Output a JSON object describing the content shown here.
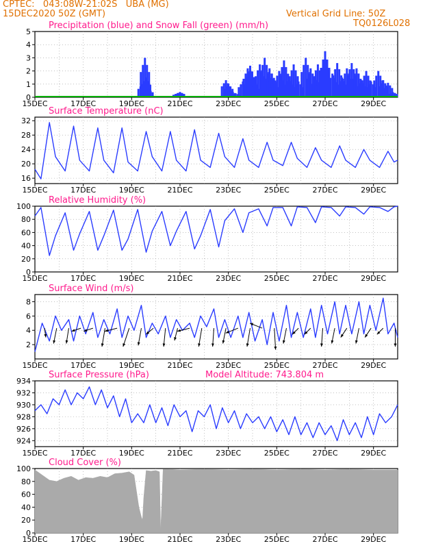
{
  "header": {
    "line1": "CPTEC:   043:08W-21:02S   UBA (MG)",
    "line2": "15DEC2020 50Z (GMT)",
    "right1": "Vertical Grid Line: 50Z",
    "right2": "TQ0126L028"
  },
  "x_axis": {
    "ticks": [
      "15DEC",
      "17DEC",
      "19DEC",
      "21DEC",
      "23DEC",
      "25DEC",
      "27DEC",
      "29DEC"
    ],
    "start_day": 15,
    "end_day": 30
  },
  "colors": {
    "line": "#2a3cff",
    "bar": "#2a3cff",
    "snow": "#00b000",
    "cloud": "#aaaaaa",
    "title": "#ff1a8c",
    "header": "#e07000",
    "arrow": "#000000"
  },
  "chart_data": [
    {
      "id": "precip",
      "type": "bar",
      "title": "Precipitation (blue) and Snow Fall (green) (mm/h)",
      "ylim": [
        0,
        5
      ],
      "yticks": [
        0,
        1,
        2,
        3,
        4,
        5
      ],
      "x_unit": "day of Dec 2020",
      "series": [
        {
          "name": "Precipitation",
          "x": [
            19.45,
            19.55,
            19.6,
            19.7,
            20.9,
            21.0,
            22.9,
            23.0,
            23.1,
            23.3,
            23.6,
            23.8,
            23.9,
            24.0,
            24.1,
            24.3,
            24.5,
            24.7,
            24.8,
            24.9,
            25.1,
            25.3,
            25.5,
            25.7,
            25.9,
            26.2,
            26.4,
            26.6,
            26.7,
            26.8,
            27.0,
            27.3,
            27.5,
            27.7,
            27.9,
            28.1,
            28.3,
            28.5,
            28.7,
            28.9,
            29.2,
            29.4,
            29.6,
            29.8
          ],
          "values": [
            1.0,
            3.0,
            1.5,
            0.6,
            0.3,
            0.4,
            1.3,
            1.0,
            0.5,
            0.3,
            1.2,
            2.2,
            2.4,
            1.5,
            1.0,
            2.5,
            3.0,
            2.2,
            1.8,
            1.2,
            2.0,
            2.8,
            1.5,
            2.5,
            1.2,
            3.0,
            2.2,
            1.6,
            2.5,
            1.4,
            3.5,
            1.8,
            2.6,
            1.5,
            2.2,
            2.6,
            2.2,
            1.3,
            2.0,
            1.2,
            2.0,
            1.3,
            1.1,
            0.4
          ]
        },
        {
          "name": "Snow Fall",
          "x": [
            15,
            30
          ],
          "values": [
            0.05,
            0.05
          ]
        }
      ]
    },
    {
      "id": "temp",
      "type": "line",
      "title": "Surface Temperature (nC)",
      "ylim": [
        14.5,
        33
      ],
      "yticks": [
        16,
        20,
        24,
        28,
        32
      ],
      "series": [
        {
          "name": "Temperature",
          "x": [
            15,
            15.25,
            15.6,
            15.85,
            16.25,
            16.6,
            16.85,
            17.25,
            17.6,
            17.85,
            18.25,
            18.6,
            18.85,
            19.25,
            19.6,
            19.85,
            20.25,
            20.6,
            20.85,
            21.25,
            21.6,
            21.85,
            22.25,
            22.6,
            22.85,
            23.25,
            23.6,
            23.85,
            24.25,
            24.6,
            24.85,
            25.25,
            25.6,
            25.85,
            26.25,
            26.6,
            26.85,
            27.25,
            27.6,
            27.85,
            28.25,
            28.6,
            28.85,
            29.25,
            29.6,
            29.85,
            30
          ],
          "values": [
            18.5,
            15.8,
            31.5,
            22,
            18,
            30.5,
            21,
            18,
            30,
            21,
            17.5,
            30,
            20.5,
            18,
            29,
            22,
            18,
            29,
            21,
            18,
            29.5,
            21,
            19,
            28.5,
            22,
            19,
            27,
            21,
            19,
            26,
            21,
            19.5,
            26,
            21.5,
            19,
            24.5,
            21,
            19,
            25,
            21,
            19,
            24,
            21,
            19,
            23.5,
            20.5,
            21
          ]
        }
      ]
    },
    {
      "id": "rh",
      "type": "line",
      "title": "Relative Humidity (%)",
      "ylim": [
        0,
        100
      ],
      "yticks": [
        0,
        20,
        40,
        60,
        80,
        100
      ],
      "series": [
        {
          "name": "Relative Humidity",
          "x": [
            15,
            15.25,
            15.6,
            15.85,
            16.25,
            16.6,
            16.85,
            17.25,
            17.6,
            17.85,
            18.25,
            18.6,
            18.85,
            19.25,
            19.6,
            19.85,
            20.25,
            20.6,
            20.85,
            21.25,
            21.6,
            21.85,
            22.25,
            22.6,
            22.85,
            23.25,
            23.6,
            23.85,
            24.25,
            24.6,
            24.85,
            25.25,
            25.6,
            25.85,
            26.25,
            26.6,
            26.85,
            27.25,
            27.6,
            27.85,
            28.25,
            28.6,
            28.85,
            29.25,
            29.6,
            29.85,
            30
          ],
          "values": [
            85,
            98,
            25,
            55,
            90,
            33,
            58,
            92,
            33,
            55,
            94,
            33,
            50,
            95,
            30,
            62,
            92,
            40,
            62,
            92,
            35,
            55,
            95,
            38,
            78,
            96,
            60,
            90,
            96,
            70,
            98,
            98,
            70,
            99,
            98,
            75,
            99,
            98,
            85,
            99,
            98,
            88,
            99,
            98,
            92,
            99,
            100
          ]
        }
      ]
    },
    {
      "id": "wind",
      "type": "line",
      "title": "Surface Wind (m/s)",
      "ylim": [
        0,
        9
      ],
      "yticks": [
        2,
        4,
        6,
        8
      ],
      "series": [
        {
          "name": "Wind Speed",
          "x": [
            15,
            15.3,
            15.6,
            15.85,
            16.1,
            16.4,
            16.6,
            16.85,
            17.1,
            17.4,
            17.6,
            17.85,
            18.1,
            18.4,
            18.6,
            18.85,
            19.1,
            19.4,
            19.6,
            19.85,
            20.1,
            20.4,
            20.6,
            20.85,
            21.1,
            21.4,
            21.6,
            21.85,
            22.1,
            22.4,
            22.6,
            22.85,
            23.1,
            23.4,
            23.6,
            23.85,
            24.1,
            24.4,
            24.6,
            24.85,
            25.1,
            25.4,
            25.6,
            25.85,
            26.1,
            26.4,
            26.6,
            26.85,
            27.1,
            27.4,
            27.6,
            27.85,
            28.1,
            28.4,
            28.6,
            28.85,
            29.1,
            29.4,
            29.6,
            29.85,
            30
          ],
          "values": [
            1,
            5,
            2.5,
            6,
            4,
            5.5,
            2.5,
            6,
            3.5,
            6.5,
            3,
            5.5,
            3.5,
            7,
            3,
            6,
            4,
            7.5,
            3,
            5,
            3.5,
            6,
            3,
            5.5,
            4,
            5,
            3,
            6,
            4.5,
            7,
            3,
            5.5,
            3,
            6,
            3,
            6.5,
            2.5,
            5.5,
            2,
            6.5,
            2.5,
            7.5,
            3,
            6.5,
            3,
            7,
            3,
            7.5,
            3.5,
            8,
            3.5,
            7.5,
            3.5,
            8,
            3.5,
            7.5,
            4,
            8.5,
            3.5,
            5,
            3
          ]
        }
      ],
      "vectors": {
        "x": [
          15.4,
          15.9,
          16.4,
          16.9,
          17.4,
          17.9,
          18.4,
          18.9,
          19.4,
          19.9,
          20.4,
          20.9,
          21.4,
          21.9,
          22.4,
          22.9,
          23.4,
          23.9,
          24.4,
          24.9,
          25.4,
          25.9,
          26.4,
          26.9,
          27.4,
          27.9,
          28.4,
          28.9,
          29.4,
          29.9
        ],
        "u": [
          0.2,
          -0.5,
          -0.4,
          -1.5,
          -1.5,
          -0.5,
          -2,
          -1,
          -0.5,
          -1.2,
          -0.3,
          -0.5,
          -2,
          -0.5,
          -0.2,
          -0.5,
          -2,
          -0.5,
          -2,
          0.2,
          -0.5,
          -1,
          -1,
          -0.2,
          -0.5,
          -1,
          -0.5,
          -1,
          -1,
          0
        ],
        "v": [
          -1.5,
          -2.5,
          -2.5,
          -0.5,
          -0.5,
          -3,
          -0.5,
          -3,
          -2.8,
          -1,
          -3,
          -2,
          -0.5,
          -3,
          -3,
          -2.5,
          -0.8,
          -3,
          0.8,
          -3.5,
          -2.5,
          -1,
          -1,
          -3,
          -2.5,
          -1.5,
          -2.5,
          -1.5,
          -1,
          -3
        ]
      }
    },
    {
      "id": "pressure",
      "type": "line",
      "title": "Surface Pressure (hPa)",
      "subtitle": "Model Altitude: 743.804 m",
      "ylim": [
        923,
        934
      ],
      "yticks": [
        924,
        926,
        928,
        930,
        932,
        934
      ],
      "series": [
        {
          "name": "Pressure",
          "x": [
            15,
            15.25,
            15.5,
            15.75,
            16,
            16.25,
            16.5,
            16.75,
            17,
            17.25,
            17.5,
            17.75,
            18,
            18.25,
            18.5,
            18.75,
            19,
            19.25,
            19.5,
            19.75,
            20,
            20.25,
            20.5,
            20.75,
            21,
            21.25,
            21.5,
            21.75,
            22,
            22.25,
            22.5,
            22.75,
            23,
            23.25,
            23.5,
            23.75,
            24,
            24.25,
            24.5,
            24.75,
            25,
            25.25,
            25.5,
            25.75,
            26,
            26.25,
            26.5,
            26.75,
            27,
            27.25,
            27.5,
            27.75,
            28,
            28.25,
            28.5,
            28.75,
            29,
            29.25,
            29.5,
            29.75,
            30
          ],
          "values": [
            929,
            930,
            928.5,
            931,
            930,
            932.5,
            930,
            932,
            931,
            933,
            930,
            932.5,
            929.5,
            931.5,
            928,
            931,
            927,
            928.5,
            927,
            930,
            927,
            929.5,
            926.5,
            930,
            928,
            929,
            925.5,
            929,
            928,
            930,
            926,
            929.5,
            927,
            929,
            926,
            928.5,
            927,
            928,
            926,
            928,
            925.5,
            927.5,
            925,
            928,
            925,
            927,
            924.5,
            927,
            925,
            926.5,
            924,
            927.5,
            925,
            927,
            924.5,
            928,
            925,
            928.5,
            927,
            928,
            930
          ]
        }
      ]
    },
    {
      "id": "cloud",
      "type": "area",
      "title": "Cloud Cover (%)",
      "ylim": [
        0,
        100
      ],
      "yticks": [
        0,
        20,
        40,
        60,
        80,
        100
      ],
      "series": [
        {
          "name": "Cloud Cover",
          "x": [
            15,
            15.3,
            15.6,
            15.9,
            16.2,
            16.5,
            16.8,
            17.1,
            17.4,
            17.7,
            18,
            18.3,
            18.6,
            18.9,
            19.1,
            19.3,
            19.4,
            19.45,
            19.5,
            19.6,
            19.8,
            20.0,
            20.15,
            20.2,
            20.3,
            20.5,
            21,
            22,
            23,
            24,
            25,
            26,
            27,
            28,
            29,
            30
          ],
          "values": [
            98,
            90,
            82,
            80,
            85,
            88,
            82,
            86,
            85,
            88,
            86,
            92,
            93,
            95,
            90,
            40,
            25,
            20,
            55,
            97,
            96,
            97,
            95,
            2,
            99,
            99,
            98,
            99,
            98,
            99,
            98,
            99,
            98,
            99,
            98,
            98
          ]
        }
      ]
    }
  ]
}
